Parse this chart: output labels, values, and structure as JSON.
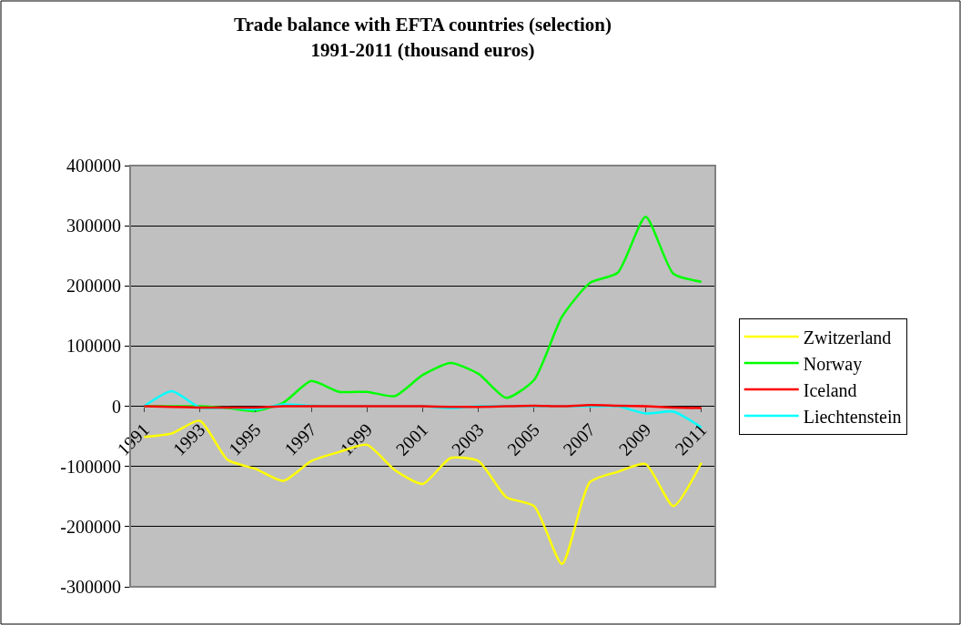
{
  "chart_data": {
    "type": "line",
    "title": "Trade balance with EFTA countries (selection)\n1991-2011 (thousand euros)",
    "categories": [
      "1991",
      null,
      "1993",
      null,
      "1995",
      null,
      "1997",
      null,
      "1999",
      null,
      "2001",
      null,
      "2003",
      null,
      "2005",
      null,
      "2007",
      null,
      "2009",
      null,
      "2011"
    ],
    "series": [
      {
        "name": "Zwitzerland",
        "color": "#ffff00",
        "values": [
          -51000,
          -45000,
          -24000,
          -89000,
          -104000,
          -124000,
          -91000,
          -76000,
          -64000,
          -106000,
          -129000,
          -86000,
          -91000,
          -151000,
          -166000,
          -262000,
          -126000,
          -109000,
          -96000,
          -166000,
          -94000
        ]
      },
      {
        "name": "Norway",
        "color": "#00ff00",
        "values": [
          0,
          0,
          0,
          -3000,
          -8000,
          6000,
          42000,
          24000,
          24000,
          17000,
          52000,
          72000,
          54000,
          14000,
          44000,
          149000,
          205000,
          222000,
          315000,
          220000,
          207000
        ]
      },
      {
        "name": "Iceland",
        "color": "#ff0000",
        "values": [
          0,
          -1000,
          -2000,
          -2000,
          -2000,
          0,
          0,
          0,
          0,
          0,
          0,
          -1000,
          -1000,
          0,
          1000,
          0,
          2000,
          1000,
          0,
          -2000,
          -3000
        ]
      },
      {
        "name": "Liechtenstein",
        "color": "#00ffff",
        "values": [
          0,
          25000,
          -2000,
          -2000,
          -5000,
          3000,
          1000,
          0,
          0,
          0,
          0,
          -3000,
          0,
          0,
          0,
          0,
          0,
          0,
          -12000,
          -9000,
          -35000
        ]
      }
    ],
    "ylim": [
      -300000,
      400000
    ],
    "yticks": [
      -300000,
      -200000,
      -100000,
      0,
      100000,
      200000,
      300000,
      400000
    ],
    "grid": "y",
    "legend": "right",
    "marker": "none",
    "line_style": "solid"
  }
}
